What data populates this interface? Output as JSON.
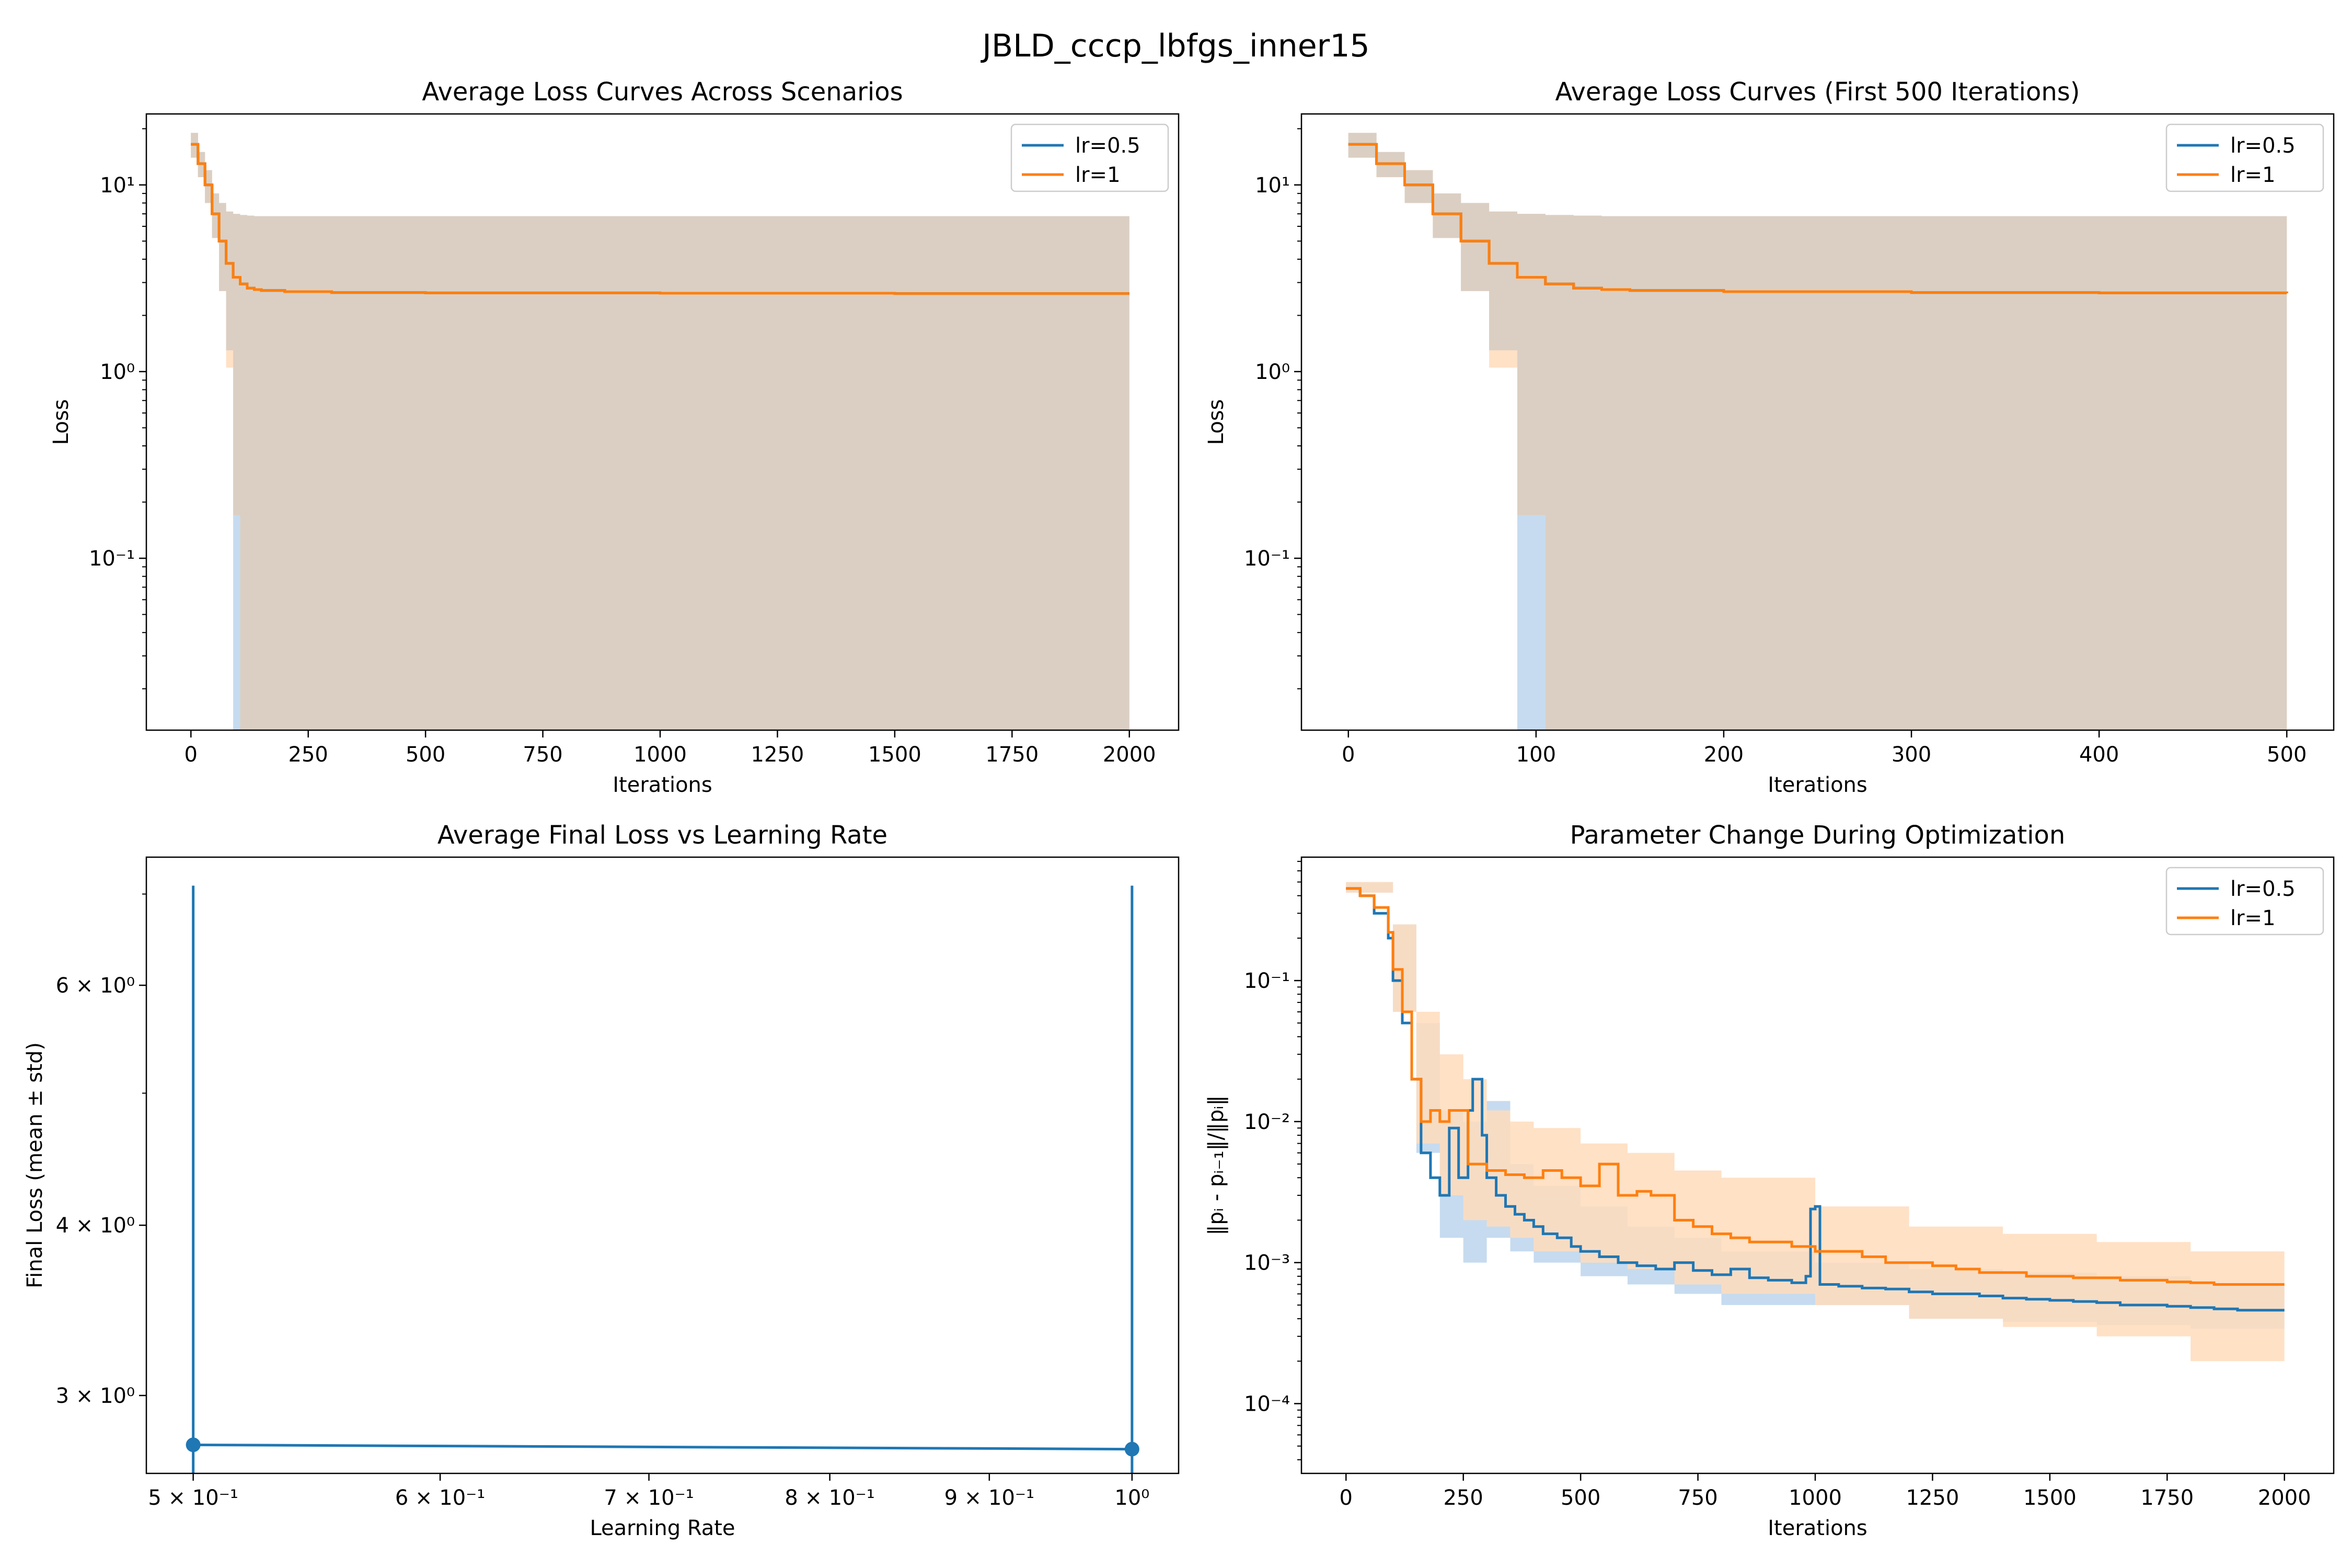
{
  "figure_title": "JBLD_cccp_lbfgs_inner15",
  "colors": {
    "lr05": "#1f77b4",
    "lr1": "#ff7f0e",
    "band05": "#c6dbef",
    "band1": "#ffdcbc",
    "overlap": "#dbcfc3"
  },
  "chart_data": [
    {
      "type": "line",
      "title": "Average Loss Curves Across Scenarios",
      "xlabel": "Iterations",
      "ylabel": "Loss",
      "xlim": [
        -95,
        2105
      ],
      "ylim": [
        0.012,
        24
      ],
      "yscale": "log",
      "xticks": [
        0,
        250,
        500,
        750,
        1000,
        1250,
        1500,
        1750,
        2000
      ],
      "yticks": [
        0.1,
        1,
        10
      ],
      "ytick_labels": [
        "10⁻¹",
        "10⁰",
        "10¹"
      ],
      "legend": "top-right",
      "grid": false,
      "series": [
        {
          "name": "lr=0.5",
          "x": [
            0,
            15,
            30,
            45,
            60,
            75,
            90,
            105,
            120,
            135,
            150,
            200,
            300,
            500,
            1000,
            1500,
            2000
          ],
          "y": [
            16.5,
            13,
            10,
            7,
            5,
            3.8,
            3.2,
            2.95,
            2.8,
            2.75,
            2.72,
            2.68,
            2.65,
            2.64,
            2.63,
            2.62,
            2.62
          ]
        },
        {
          "name": "lr=1",
          "x": [
            0,
            15,
            30,
            45,
            60,
            75,
            90,
            105,
            120,
            135,
            150,
            200,
            300,
            500,
            1000,
            1500,
            2000
          ],
          "y": [
            16.5,
            13,
            10,
            7,
            5,
            3.8,
            3.2,
            2.95,
            2.8,
            2.75,
            2.72,
            2.68,
            2.65,
            2.64,
            2.63,
            2.62,
            2.62
          ]
        }
      ],
      "bands": [
        {
          "name": "lr=0.5",
          "x": [
            0,
            15,
            30,
            45,
            60,
            75,
            90,
            105,
            120,
            135,
            150,
            2000
          ],
          "upper": [
            19,
            15,
            12,
            9,
            8,
            7.2,
            7.0,
            6.9,
            6.85,
            6.8,
            6.8,
            6.8
          ],
          "lower": [
            14,
            11,
            8,
            5.2,
            2.7,
            1.3,
            0.012,
            0.012,
            0.012,
            0.012,
            0.012,
            0.012
          ]
        },
        {
          "name": "lr=1",
          "x": [
            0,
            15,
            30,
            45,
            60,
            75,
            90,
            105,
            120,
            135,
            150,
            2000
          ],
          "upper": [
            19,
            15,
            12,
            9,
            8,
            7.2,
            7.0,
            6.9,
            6.85,
            6.8,
            6.8,
            6.8
          ],
          "lower": [
            14,
            11,
            8,
            5.2,
            2.7,
            1.05,
            0.17,
            0.012,
            0.012,
            0.012,
            0.012,
            0.012
          ]
        }
      ]
    },
    {
      "type": "line",
      "title": "Average Loss Curves (First 500 Iterations)",
      "xlabel": "Iterations",
      "ylabel": "Loss",
      "xlim": [
        -25,
        525
      ],
      "ylim": [
        0.012,
        24
      ],
      "yscale": "log",
      "xticks": [
        0,
        100,
        200,
        300,
        400,
        500
      ],
      "yticks": [
        0.1,
        1,
        10
      ],
      "ytick_labels": [
        "10⁻¹",
        "10⁰",
        "10¹"
      ],
      "legend": "top-right",
      "grid": false,
      "series": [
        {
          "name": "lr=0.5",
          "x": [
            0,
            15,
            30,
            45,
            60,
            75,
            90,
            105,
            120,
            135,
            150,
            200,
            300,
            400,
            500
          ],
          "y": [
            16.5,
            13,
            10,
            7,
            5,
            3.8,
            3.2,
            2.95,
            2.8,
            2.75,
            2.72,
            2.68,
            2.65,
            2.64,
            2.63
          ]
        },
        {
          "name": "lr=1",
          "x": [
            0,
            15,
            30,
            45,
            60,
            75,
            90,
            105,
            120,
            135,
            150,
            200,
            300,
            400,
            500
          ],
          "y": [
            16.5,
            13,
            10,
            7,
            5,
            3.8,
            3.2,
            2.95,
            2.8,
            2.75,
            2.72,
            2.68,
            2.65,
            2.64,
            2.63
          ]
        }
      ],
      "bands": [
        {
          "name": "lr=0.5",
          "x": [
            0,
            15,
            30,
            45,
            60,
            75,
            90,
            105,
            120,
            135,
            150,
            500
          ],
          "upper": [
            19,
            15,
            12,
            9,
            8,
            7.2,
            7.0,
            6.9,
            6.85,
            6.8,
            6.8,
            6.8
          ],
          "lower": [
            14,
            11,
            8,
            5.2,
            2.7,
            1.3,
            0.012,
            0.012,
            0.012,
            0.012,
            0.012,
            0.012
          ]
        },
        {
          "name": "lr=1",
          "x": [
            0,
            15,
            30,
            45,
            60,
            75,
            90,
            105,
            120,
            135,
            150,
            500
          ],
          "upper": [
            19,
            15,
            12,
            9,
            8,
            7.2,
            7.0,
            6.9,
            6.85,
            6.8,
            6.8,
            6.8
          ],
          "lower": [
            14,
            11,
            8,
            5.2,
            2.7,
            1.05,
            0.17,
            0.012,
            0.012,
            0.012,
            0.012,
            0.012
          ]
        }
      ]
    },
    {
      "type": "line",
      "title": "Average Final Loss vs Learning Rate",
      "xlabel": "Learning Rate",
      "ylabel": "Final Loss (mean ± std)",
      "xscale": "log",
      "yscale": "log",
      "xlim": [
        0.483,
        1.035
      ],
      "ylim": [
        2.63,
        7.45
      ],
      "xticks": [
        0.5,
        0.6,
        0.7,
        0.8,
        0.9,
        1
      ],
      "xtick_labels": [
        "5 × 10⁻¹",
        "6 × 10⁻¹",
        "7 × 10⁻¹",
        "8 × 10⁻¹",
        "9 × 10⁻¹",
        "10⁰"
      ],
      "yticks": [
        3,
        4,
        6
      ],
      "ytick_labels": [
        "3 × 10⁰",
        "4 × 10⁰",
        "6 × 10⁰"
      ],
      "grid": false,
      "points": {
        "x": [
          0.5,
          1
        ],
        "y": [
          2.76,
          2.74
        ],
        "err_upper": [
          7.1,
          7.1
        ],
        "err_lower": [
          2.63,
          2.63
        ]
      }
    },
    {
      "type": "line",
      "title": "Parameter Change During Optimization",
      "xlabel": "Iterations",
      "ylabel": "‖pᵢ - pᵢ₋₁‖/‖pᵢ‖",
      "xlim": [
        -95,
        2105
      ],
      "ylim": [
        3.2e-05,
        0.75
      ],
      "yscale": "log",
      "xticks": [
        0,
        250,
        500,
        750,
        1000,
        1250,
        1500,
        1750,
        2000
      ],
      "yticks": [
        0.0001,
        0.001,
        0.01,
        0.1
      ],
      "ytick_labels": [
        "10⁻⁴",
        "10⁻³",
        "10⁻²",
        "10⁻¹"
      ],
      "legend": "top-right",
      "grid": false,
      "series": [
        {
          "name": "lr=0.5",
          "x": [
            0,
            30,
            60,
            90,
            100,
            120,
            140,
            160,
            180,
            200,
            220,
            240,
            260,
            270,
            290,
            300,
            320,
            340,
            360,
            380,
            400,
            420,
            450,
            480,
            500,
            540,
            580,
            620,
            660,
            700,
            740,
            780,
            820,
            860,
            900,
            950,
            980,
            990,
            1000,
            1010,
            1050,
            1100,
            1150,
            1200,
            1250,
            1300,
            1350,
            1400,
            1450,
            1500,
            1550,
            1600,
            1650,
            1700,
            1750,
            1800,
            1850,
            1900,
            1950,
            2000
          ],
          "y": [
            0.45,
            0.4,
            0.3,
            0.2,
            0.1,
            0.05,
            0.02,
            0.006,
            0.004,
            0.003,
            0.009,
            0.004,
            0.012,
            0.02,
            0.008,
            0.004,
            0.003,
            0.0025,
            0.0022,
            0.002,
            0.0018,
            0.0016,
            0.0015,
            0.0013,
            0.0012,
            0.0011,
            0.001,
            0.00095,
            0.0009,
            0.001,
            0.00088,
            0.00082,
            0.0009,
            0.00078,
            0.00075,
            0.00072,
            0.0008,
            0.0024,
            0.0025,
            0.0007,
            0.00068,
            0.00066,
            0.00065,
            0.00062,
            0.0006,
            0.0006,
            0.00058,
            0.00056,
            0.00055,
            0.00054,
            0.00053,
            0.00052,
            0.0005,
            0.0005,
            0.00049,
            0.00048,
            0.00047,
            0.00046,
            0.00046,
            0.00046
          ]
        },
        {
          "name": "lr=1",
          "x": [
            0,
            30,
            60,
            90,
            100,
            120,
            140,
            160,
            180,
            200,
            220,
            260,
            300,
            340,
            380,
            420,
            460,
            500,
            540,
            580,
            620,
            650,
            700,
            740,
            780,
            820,
            860,
            900,
            950,
            1000,
            1050,
            1100,
            1150,
            1200,
            1250,
            1300,
            1350,
            1400,
            1450,
            1500,
            1550,
            1600,
            1650,
            1700,
            1750,
            1800,
            1850,
            1900,
            1950,
            2000
          ],
          "y": [
            0.45,
            0.4,
            0.33,
            0.22,
            0.12,
            0.06,
            0.02,
            0.01,
            0.012,
            0.01,
            0.012,
            0.005,
            0.0045,
            0.0042,
            0.004,
            0.0045,
            0.004,
            0.0035,
            0.005,
            0.003,
            0.0032,
            0.003,
            0.002,
            0.0018,
            0.0016,
            0.0015,
            0.0014,
            0.0014,
            0.0013,
            0.0012,
            0.0012,
            0.0011,
            0.001,
            0.001,
            0.00095,
            0.0009,
            0.00085,
            0.00085,
            0.0008,
            0.0008,
            0.00078,
            0.00078,
            0.00075,
            0.00075,
            0.00073,
            0.00072,
            0.0007,
            0.0007,
            0.0007,
            0.0007
          ]
        }
      ],
      "bands": [
        {
          "name": "lr=0.5",
          "x": [
            0,
            100,
            150,
            200,
            250,
            300,
            350,
            400,
            500,
            600,
            700,
            800,
            1000,
            1200,
            1400,
            1600,
            1800,
            2000
          ],
          "upper": [
            0.5,
            0.25,
            0.05,
            0.012,
            0.01,
            0.014,
            0.005,
            0.0035,
            0.0025,
            0.0018,
            0.0015,
            0.0012,
            0.001,
            0.0009,
            0.00085,
            0.0008,
            0.0007,
            0.0007
          ],
          "lower": [
            0.42,
            0.06,
            0.006,
            0.0015,
            0.001,
            0.0015,
            0.0012,
            0.001,
            0.0008,
            0.0007,
            0.0006,
            0.0005,
            0.0005,
            0.0004,
            0.00038,
            0.00036,
            0.00034,
            0.00033
          ]
        },
        {
          "name": "lr=1",
          "x": [
            0,
            100,
            150,
            200,
            250,
            300,
            350,
            400,
            500,
            600,
            700,
            800,
            1000,
            1200,
            1400,
            1600,
            1800,
            2000
          ],
          "upper": [
            0.5,
            0.25,
            0.06,
            0.03,
            0.02,
            0.012,
            0.01,
            0.009,
            0.007,
            0.006,
            0.0045,
            0.004,
            0.0025,
            0.0018,
            0.0016,
            0.0014,
            0.0012,
            0.0011
          ],
          "lower": [
            0.42,
            0.06,
            0.007,
            0.003,
            0.002,
            0.0018,
            0.0015,
            0.0012,
            0.001,
            0.0009,
            0.0007,
            0.0006,
            0.0005,
            0.0004,
            0.00035,
            0.0003,
            0.0002,
            0.00016
          ]
        }
      ]
    }
  ]
}
